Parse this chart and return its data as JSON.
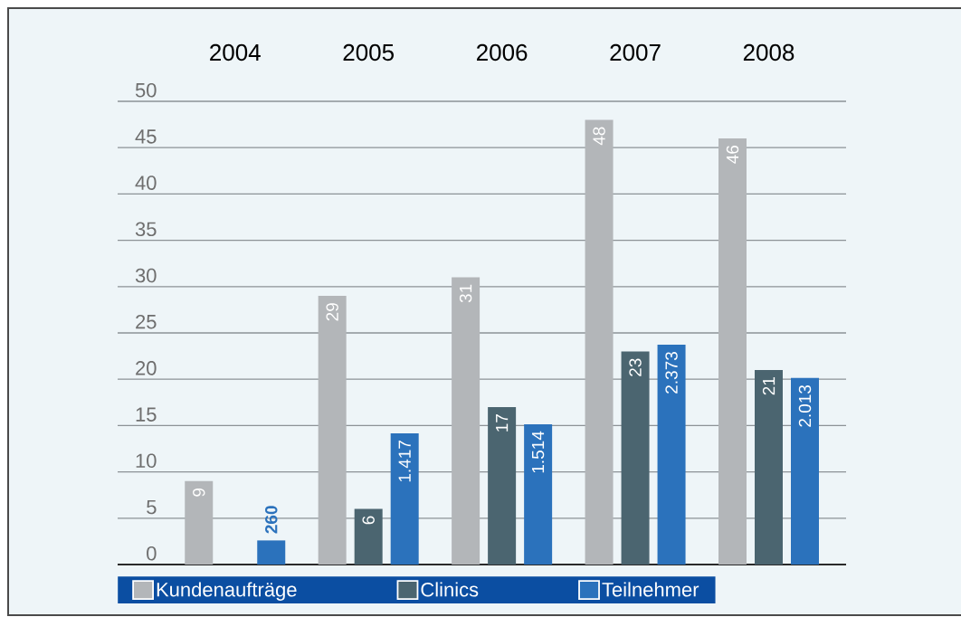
{
  "chart_data": {
    "type": "bar",
    "categories": [
      "2004",
      "2005",
      "2006",
      "2007",
      "2008"
    ],
    "series": [
      {
        "name": "Kundenaufträge",
        "color": "#b3b6b9",
        "values": [
          9,
          29,
          31,
          48,
          46
        ],
        "value_labels": [
          "9",
          "29",
          "31",
          "48",
          "46"
        ]
      },
      {
        "name": "Clinics",
        "color": "#4b6570",
        "values": [
          null,
          6,
          17,
          23,
          21
        ],
        "value_labels": [
          null,
          "6",
          "17",
          "23",
          "21"
        ]
      },
      {
        "name": "Teilnehmer",
        "color": "#2b72bc",
        "axis": "y2",
        "values": [
          260,
          1417,
          1514,
          2373,
          2013
        ],
        "value_labels": [
          "260",
          "1.417",
          "1.514",
          "2.373",
          "2.013"
        ]
      }
    ],
    "ylim": [
      0,
      50
    ],
    "yticks": [
      0,
      5,
      10,
      15,
      20,
      25,
      30,
      35,
      40,
      45,
      50
    ],
    "y2lim": [
      0,
      5000
    ],
    "grid": "y",
    "legend": "bottom"
  }
}
